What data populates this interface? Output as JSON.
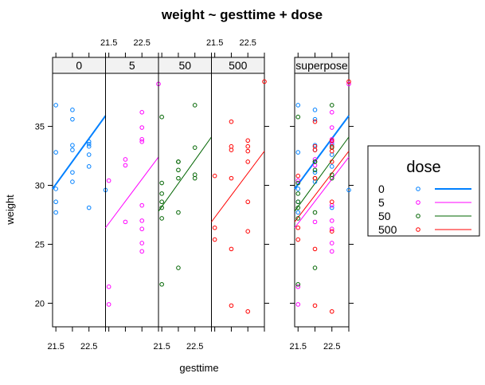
{
  "chart_data": {
    "type": "scatter",
    "title": "weight ~ gesttime + dose",
    "xlabel": "gesttime",
    "ylabel": "weight",
    "xlim": [
      21.4,
      23.0
    ],
    "ylim": [
      18.0,
      39.5
    ],
    "x_ticks": [
      21.5,
      22.0,
      22.5,
      23.0
    ],
    "x_tick_labels": [
      "21.5",
      "",
      "22.5",
      ""
    ],
    "y_ticks": [
      20,
      25,
      30,
      35
    ],
    "y_tick_labels": [
      "20",
      "25",
      "30",
      "35"
    ],
    "panels": [
      "0",
      "5",
      "50",
      "500"
    ],
    "superpose_label": "superpose",
    "legend": {
      "title": "dose",
      "position": "right"
    },
    "series": [
      {
        "name": "0",
        "color": "#0080ff",
        "line_width": 2,
        "fit": {
          "x0": 21.4,
          "y0": 29.7,
          "x1": 23.0,
          "y1": 35.9
        },
        "points": [
          [
            21.5,
            36.8
          ],
          [
            21.5,
            32.8
          ],
          [
            21.5,
            29.7
          ],
          [
            21.5,
            28.6
          ],
          [
            21.5,
            27.7
          ],
          [
            22.0,
            36.4
          ],
          [
            22.0,
            35.6
          ],
          [
            22.0,
            33.4
          ],
          [
            22.0,
            33.0
          ],
          [
            22.0,
            31.1
          ],
          [
            22.0,
            30.3
          ],
          [
            22.5,
            33.7
          ],
          [
            22.5,
            33.5
          ],
          [
            22.5,
            33.3
          ],
          [
            22.5,
            32.6
          ],
          [
            22.5,
            31.6
          ],
          [
            22.5,
            28.1
          ],
          [
            23.0,
            29.6
          ]
        ]
      },
      {
        "name": "5",
        "color": "#ff00ff",
        "line_width": 1,
        "fit": {
          "x0": 21.4,
          "y0": 26.4,
          "x1": 23.0,
          "y1": 32.4
        },
        "points": [
          [
            21.5,
            30.4
          ],
          [
            21.5,
            21.4
          ],
          [
            21.5,
            19.9
          ],
          [
            22.0,
            32.2
          ],
          [
            22.0,
            31.7
          ],
          [
            22.0,
            26.9
          ],
          [
            22.5,
            36.2
          ],
          [
            22.5,
            34.9
          ],
          [
            22.5,
            33.9
          ],
          [
            22.5,
            33.7
          ],
          [
            22.5,
            28.3
          ],
          [
            22.5,
            27.0
          ],
          [
            22.5,
            26.3
          ],
          [
            22.5,
            25.1
          ],
          [
            22.5,
            24.4
          ],
          [
            23.0,
            38.6
          ]
        ]
      },
      {
        "name": "50",
        "color": "#006400",
        "line_width": 1,
        "fit": {
          "x0": 21.4,
          "y0": 27.8,
          "x1": 23.0,
          "y1": 34.1
        },
        "points": [
          [
            21.5,
            35.8
          ],
          [
            21.5,
            30.2
          ],
          [
            21.5,
            29.3
          ],
          [
            21.5,
            28.6
          ],
          [
            21.5,
            28.1
          ],
          [
            21.5,
            27.2
          ],
          [
            21.5,
            21.6
          ],
          [
            22.0,
            32.0
          ],
          [
            22.0,
            32.0
          ],
          [
            22.0,
            31.3
          ],
          [
            22.0,
            30.6
          ],
          [
            22.0,
            27.7
          ],
          [
            22.0,
            23.0
          ],
          [
            22.5,
            36.8
          ],
          [
            22.5,
            33.2
          ],
          [
            22.5,
            30.9
          ],
          [
            22.5,
            30.6
          ]
        ]
      },
      {
        "name": "500",
        "color": "#ff0000",
        "line_width": 1,
        "fit": {
          "x0": 21.4,
          "y0": 26.9,
          "x1": 23.0,
          "y1": 32.9
        },
        "points": [
          [
            21.5,
            30.8
          ],
          [
            21.5,
            26.4
          ],
          [
            21.5,
            25.4
          ],
          [
            22.0,
            35.4
          ],
          [
            22.0,
            33.3
          ],
          [
            22.0,
            33.0
          ],
          [
            22.0,
            30.6
          ],
          [
            22.0,
            24.6
          ],
          [
            22.0,
            19.8
          ],
          [
            22.5,
            33.8
          ],
          [
            22.5,
            33.3
          ],
          [
            22.5,
            32.9
          ],
          [
            22.5,
            32.0
          ],
          [
            22.5,
            28.6
          ],
          [
            22.5,
            26.1
          ],
          [
            22.5,
            19.3
          ],
          [
            23.0,
            38.8
          ]
        ]
      }
    ]
  }
}
